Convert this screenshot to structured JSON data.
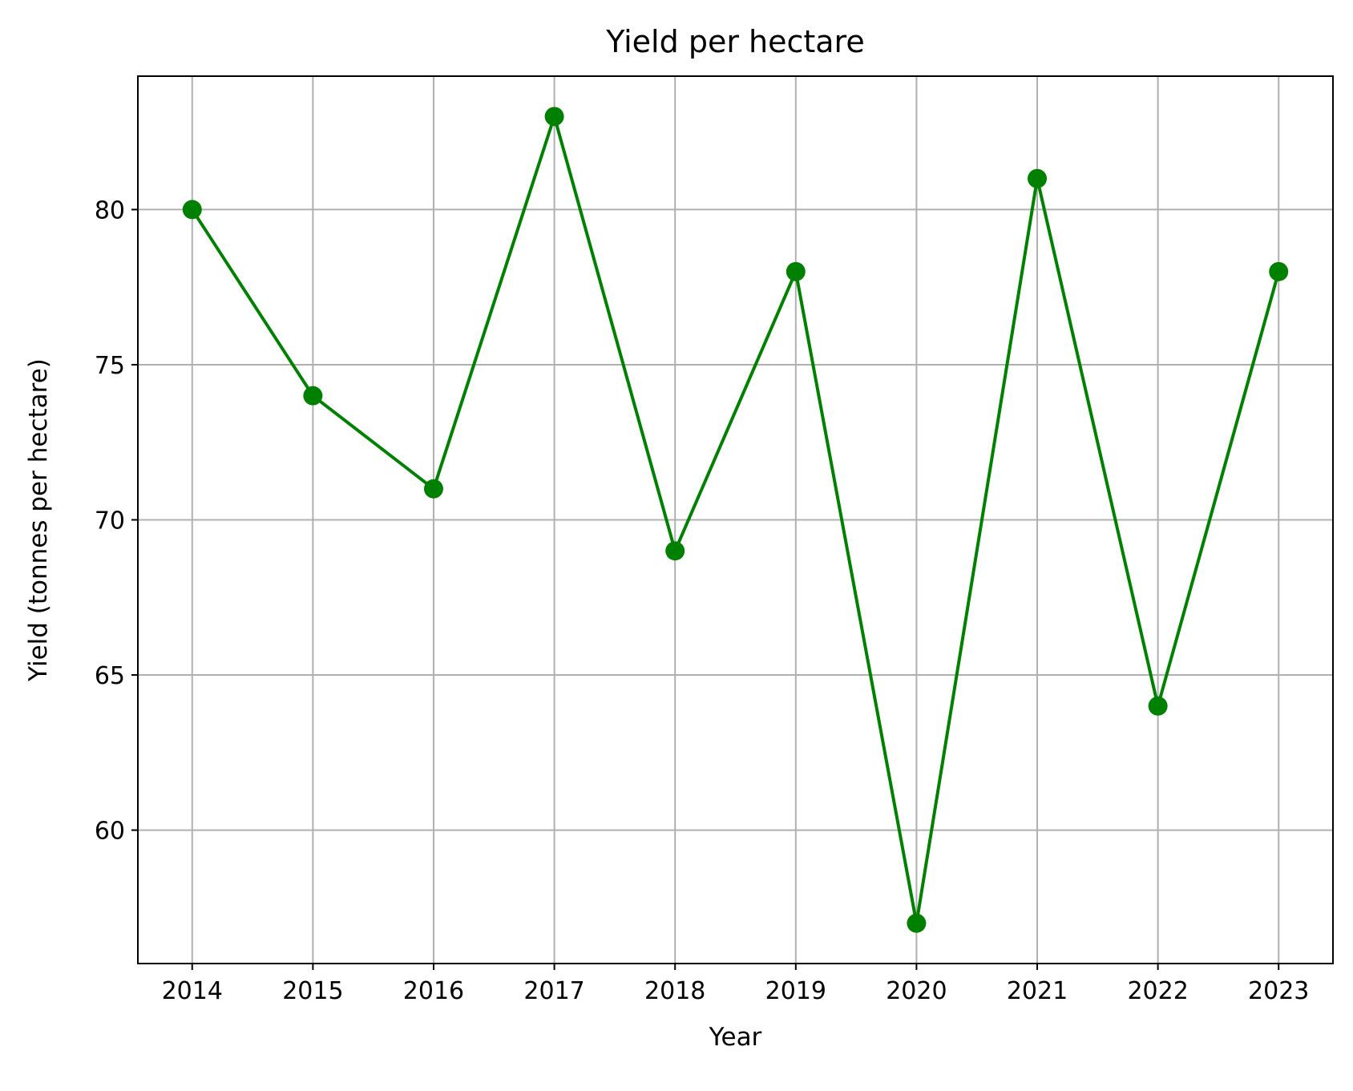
{
  "chart_data": {
    "type": "line",
    "title": "Yield per hectare",
    "xlabel": "Year",
    "ylabel": "Yield (tonnes per hectare)",
    "x": [
      2014,
      2015,
      2016,
      2017,
      2018,
      2019,
      2020,
      2021,
      2022,
      2023
    ],
    "series": [
      {
        "values": [
          80,
          74,
          71,
          83,
          69,
          78,
          57,
          81,
          64,
          78
        ],
        "color": "#008000",
        "marker": "circle"
      }
    ],
    "xlim": [
      2013.55,
      2023.45
    ],
    "ylim": [
      55.7,
      84.3
    ],
    "yticks": [
      60,
      65,
      70,
      75,
      80
    ],
    "grid": true,
    "legend": "none"
  }
}
